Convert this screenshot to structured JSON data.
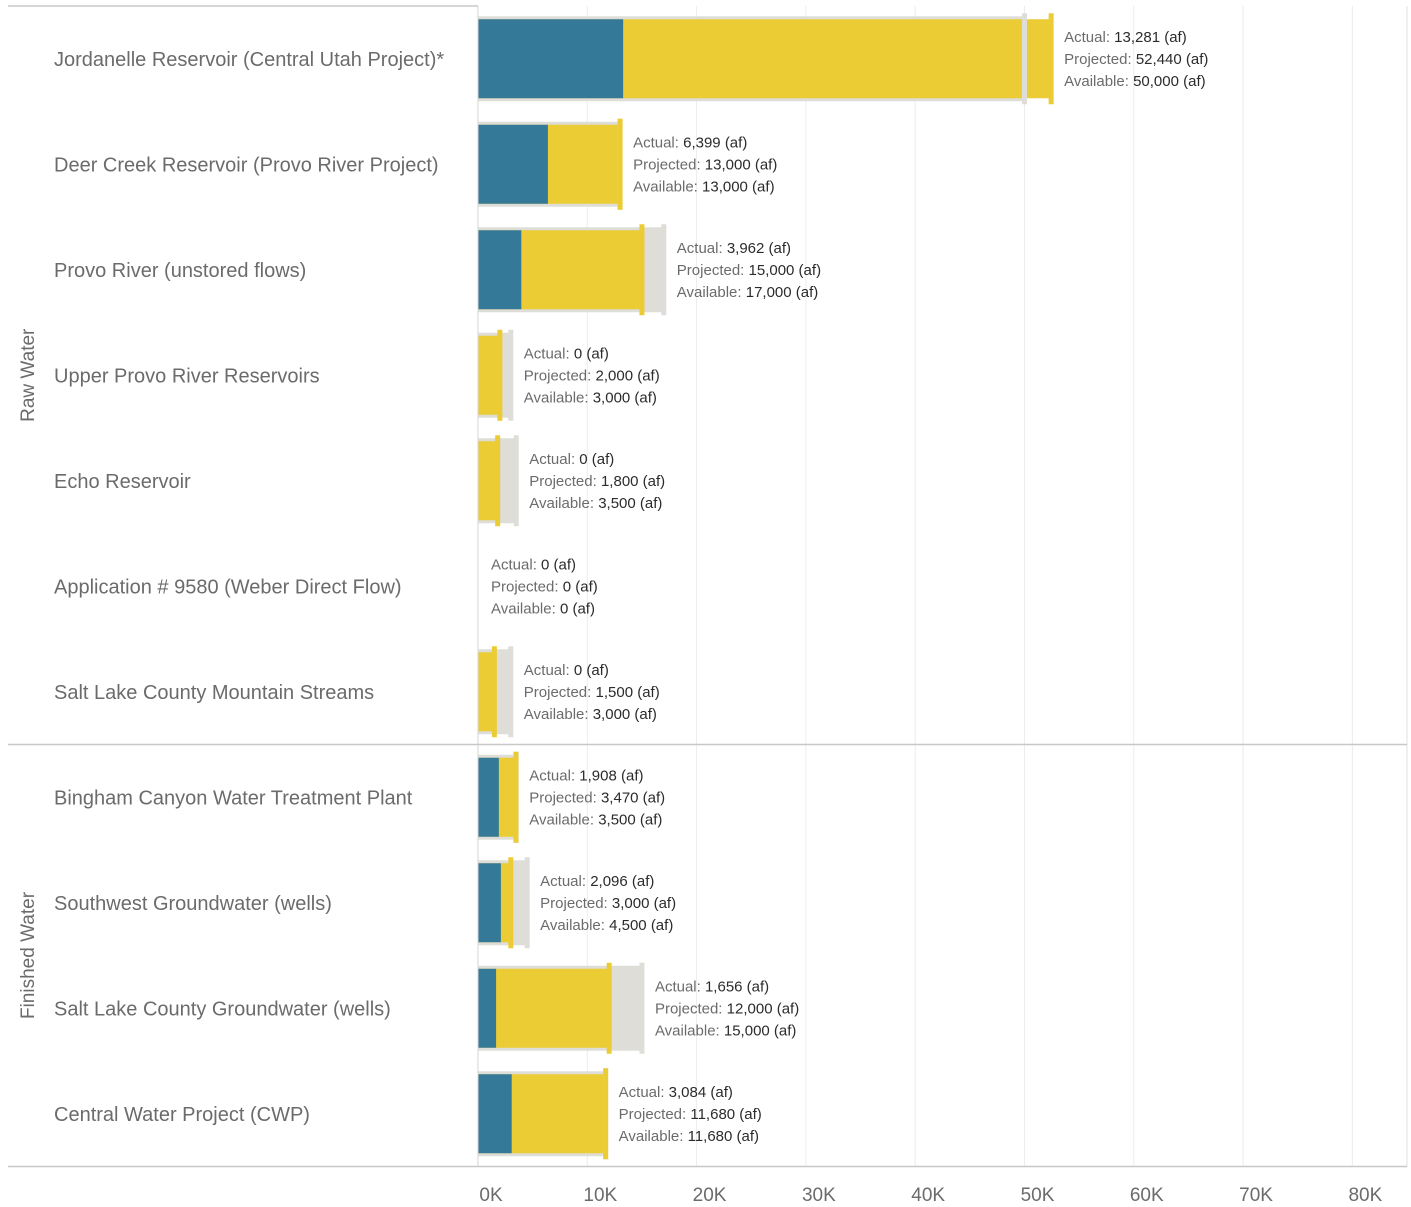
{
  "chart_data": {
    "type": "bar",
    "subtype": "bullet",
    "x_axis": {
      "min": 0,
      "max": 85000,
      "ticks": [
        0,
        10000,
        20000,
        30000,
        40000,
        50000,
        60000,
        70000,
        80000
      ],
      "tick_labels": [
        "0K",
        "10K",
        "20K",
        "30K",
        "40K",
        "50K",
        "60K",
        "70K",
        "80K"
      ],
      "grid": true
    },
    "annotation_keys": {
      "actual": "Actual:",
      "projected": "Projected:",
      "available": "Available:"
    },
    "unit": "(af)",
    "colors": {
      "actual": "#347a98",
      "projected": "#eccc34",
      "available": "#deddd8",
      "grid": "#ececec",
      "separator": "#c8c8c8"
    },
    "groups": [
      {
        "name": "Raw Water",
        "rows": [
          {
            "label": "Jordanelle Reservoir (Central Utah Project)*",
            "actual": 13281,
            "projected": 52440,
            "available": 50000
          },
          {
            "label": "Deer Creek Reservoir (Provo River Project)",
            "actual": 6399,
            "projected": 13000,
            "available": 13000
          },
          {
            "label": "Provo River (unstored flows)",
            "actual": 3962,
            "projected": 15000,
            "available": 17000
          },
          {
            "label": "Upper Provo River Reservoirs",
            "actual": 0,
            "projected": 2000,
            "available": 3000
          },
          {
            "label": "Echo Reservoir",
            "actual": 0,
            "projected": 1800,
            "available": 3500
          },
          {
            "label": "Application # 9580 (Weber Direct Flow)",
            "actual": 0,
            "projected": 0,
            "available": 0
          },
          {
            "label": "Salt Lake County Mountain Streams",
            "actual": 0,
            "projected": 1500,
            "available": 3000
          }
        ]
      },
      {
        "name": "Finished Water",
        "rows": [
          {
            "label": "Bingham Canyon Water Treatment Plant",
            "actual": 1908,
            "projected": 3470,
            "available": 3500
          },
          {
            "label": "Southwest Groundwater (wells)",
            "actual": 2096,
            "projected": 3000,
            "available": 4500
          },
          {
            "label": "Salt Lake County Groundwater (wells)",
            "actual": 1656,
            "projected": 12000,
            "available": 15000
          },
          {
            "label": "Central Water Project (CWP)",
            "actual": 3084,
            "projected": 11680,
            "available": 11680
          }
        ]
      }
    ]
  }
}
